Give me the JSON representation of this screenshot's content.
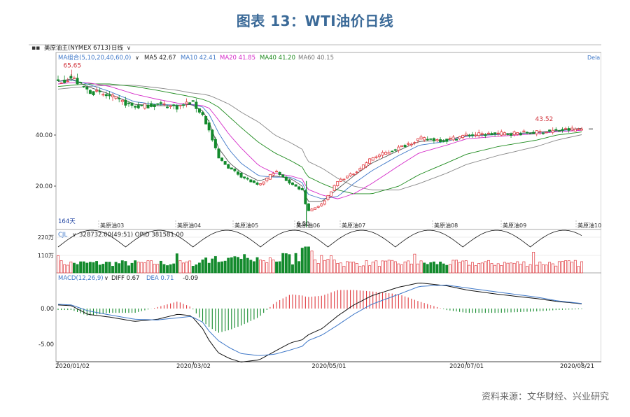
{
  "title": "图表 13：WTI油价日线",
  "source": "资料来源：文华财经、兴业研究",
  "header": {
    "symbol_label": "美原油主(NYMEX 6713)",
    "period_label": "日线",
    "dropdown_glyph": "∨",
    "delay_label": "Dela"
  },
  "legend": {
    "ma_group": "MA组合(5,10,20,40,60,0)",
    "ma5": "MA5 42.67",
    "ma10": "MA10 42.41",
    "ma20": "MA20 41.85",
    "ma40": "MA40 41.20",
    "ma60": "MA60 40.15",
    "volume": "CJL",
    "volume_values": "328732.00(49:51)  OPID 381581.00",
    "macd": "MACD(12,26,9)",
    "diff": "DIFF 0.67",
    "dea": "DEA 0.71",
    "macd_value": "-0.09"
  },
  "annotations": {
    "high": "65.65",
    "recent_high": "43.52",
    "low": "6.50",
    "days": "164天",
    "contract_labels": [
      "美原油03",
      "美原油04",
      "美原油05",
      "美原油06",
      "美原油07",
      "美原油08",
      "美原油09",
      "美原油10"
    ]
  },
  "colors": {
    "title": "#3b6a98",
    "up": "#e0393e",
    "down": "#138a2c",
    "ma5": "#555555",
    "ma10": "#3f78c8",
    "ma20": "#d429c8",
    "ma40": "#1e8b1e",
    "ma60": "#888888",
    "axis": "#222222",
    "annotation": "#d0313a"
  },
  "chart_data": {
    "type": "candlestick",
    "x_ticks": [
      "2020/01/02",
      "2020/03/02",
      "2020/05/01",
      "2020/07/01",
      "2020/08/21"
    ],
    "price_axis": {
      "ticks": [
        "40.00",
        "20.00"
      ],
      "range": [
        4,
        70
      ]
    },
    "volume_axis": {
      "ticks": [
        "220万",
        "110万"
      ]
    },
    "macd_axis": {
      "ticks": [
        "0.00",
        "-5.00"
      ],
      "range": [
        -8,
        4
      ]
    },
    "price_series": {
      "x": [
        "2020-01-02",
        "2020-01-08",
        "2020-01-15",
        "2020-01-25",
        "2020-02-05",
        "2020-02-15",
        "2020-02-24",
        "2020-03-01",
        "2020-03-06",
        "2020-03-09",
        "2020-03-13",
        "2020-03-18",
        "2020-03-23",
        "2020-03-31",
        "2020-04-07",
        "2020-04-14",
        "2020-04-20",
        "2020-04-21",
        "2020-04-28",
        "2020-05-05",
        "2020-05-12",
        "2020-05-20",
        "2020-06-01",
        "2020-06-10",
        "2020-06-22",
        "2020-07-01",
        "2020-07-15",
        "2020-08-01",
        "2020-08-10",
        "2020-08-21"
      ],
      "close": [
        61,
        62.5,
        57.5,
        55,
        51,
        52,
        51,
        53,
        48,
        41.5,
        31,
        27,
        24,
        20,
        26,
        21,
        18,
        10,
        13,
        22,
        25,
        31,
        35,
        38.5,
        38,
        40,
        40.5,
        41,
        41.8,
        42.4
      ]
    },
    "ma5": [
      61,
      62,
      59,
      56,
      52,
      51.5,
      51.5,
      52,
      49.5,
      45,
      35,
      29,
      25.5,
      22,
      24,
      23,
      19.5,
      14,
      14,
      19,
      24,
      29,
      34,
      37.5,
      38,
      39.8,
      40.4,
      41,
      41.7,
      42.67
    ],
    "ma10": [
      61,
      61.5,
      60,
      57,
      53,
      52,
      51.7,
      52,
      51,
      48,
      41,
      34,
      29,
      24,
      23.5,
      23.5,
      21,
      17,
      15,
      16,
      21,
      26,
      32,
      36,
      37.5,
      39.5,
      40.2,
      40.9,
      41.6,
      42.41
    ],
    "ma20": [
      60,
      60.5,
      60.5,
      59,
      56,
      54,
      52.5,
      52,
      51.5,
      50.5,
      46,
      40,
      35,
      28,
      25,
      24,
      22.5,
      19,
      16.5,
      15,
      17,
      21,
      28,
      33,
      36,
      38.5,
      39.5,
      40.5,
      41.3,
      41.85
    ],
    "ma40": [
      59,
      59.5,
      60,
      60,
      59,
      57.5,
      56,
      55,
      54,
      53,
      51,
      47,
      43,
      37,
      33,
      30,
      27,
      24,
      21,
      18.5,
      17,
      17,
      20,
      24.5,
      29,
      32.5,
      35.5,
      38,
      40,
      41.2
    ],
    "ma60": [
      58,
      58.5,
      59,
      59.5,
      59.5,
      58.5,
      57.5,
      56.5,
      56,
      55.5,
      54,
      52,
      49,
      45,
      40,
      37,
      34,
      30,
      27,
      23,
      20,
      18.5,
      18.5,
      21,
      25,
      28.5,
      32,
      35.5,
      38,
      40.15
    ],
    "macd_diff": [
      0.5,
      0.4,
      -0.8,
      -1.2,
      -1.8,
      -1.5,
      -0.8,
      -1,
      -2.8,
      -4.5,
      -6.2,
      -7,
      -7.5,
      -7.2,
      -6,
      -4.8,
      -4.3,
      -3.8,
      -2.8,
      -1,
      0.5,
      1.8,
      3,
      3.6,
      3.2,
      2.6,
      2,
      1.4,
      1,
      0.67
    ],
    "macd_dea": [
      0.6,
      0.5,
      -0.3,
      -0.9,
      -1.5,
      -1.6,
      -1.3,
      -1.1,
      -1.9,
      -3.2,
      -4.5,
      -5.5,
      -6.3,
      -6.6,
      -6.4,
      -5.8,
      -5.2,
      -4.6,
      -3.7,
      -2.3,
      -0.8,
      0.6,
      2,
      3.1,
      3.3,
      2.9,
      2.3,
      1.6,
      1.1,
      0.71
    ]
  }
}
